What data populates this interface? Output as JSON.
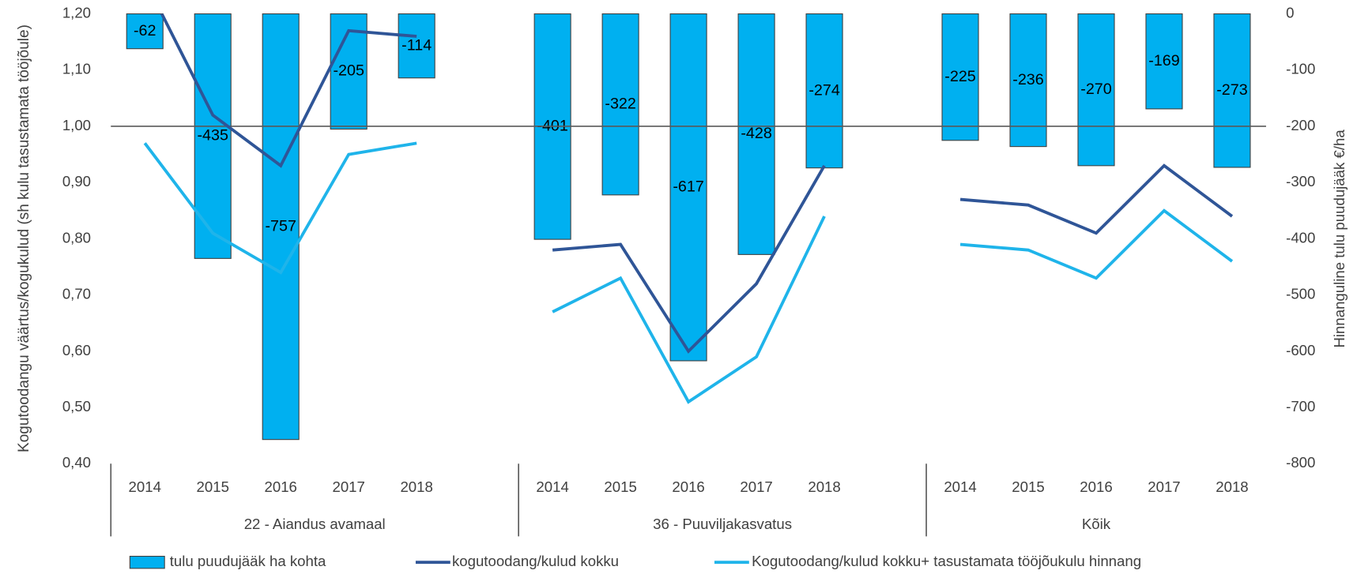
{
  "chart_data": {
    "type": "bar-line",
    "y_label": "Kogutoodangu väärtus/kogukulud (sh kulu tasustamata tööjõule)",
    "y2_label": "Hinnanguline tulu puudujääk €/ha",
    "categories": [
      "2014",
      "2015",
      "2016",
      "2017",
      "2018",
      null,
      "2014",
      "2015",
      "2016",
      "2017",
      "2018",
      null,
      "2014",
      "2015",
      "2016",
      "2017",
      "2018"
    ],
    "groups": [
      {
        "label": "22 - Aiandus avamaal",
        "start": 0,
        "end": 5
      },
      {
        "label": "36 - Puuviljakasvatus",
        "start": 6,
        "end": 11
      },
      {
        "label": "Kõik",
        "start": 12,
        "end": 16
      }
    ],
    "ylim": [
      0.4,
      1.2
    ],
    "yticks": [
      {
        "value": 0.4,
        "label": "0,40"
      },
      {
        "value": 0.5,
        "label": "0,50"
      },
      {
        "value": 0.6,
        "label": "0,60"
      },
      {
        "value": 0.7,
        "label": "0,70"
      },
      {
        "value": 0.8,
        "label": "0,80"
      },
      {
        "value": 0.9,
        "label": "0,90"
      },
      {
        "value": 1.0,
        "label": "1,00"
      },
      {
        "value": 1.1,
        "label": "1,10"
      },
      {
        "value": 1.2,
        "label": "1,20"
      }
    ],
    "y2lim": [
      -800,
      0
    ],
    "y2ticks": [
      -800,
      -700,
      -600,
      -500,
      -400,
      -300,
      -200,
      -100,
      0
    ],
    "reference_line": 1.0,
    "legend": "bottom",
    "series": [
      {
        "name": "tulu puudujääk ha kohta",
        "type": "bar",
        "axis": "y2",
        "color": "#00b0f0",
        "values": [
          -62,
          -435,
          -757,
          -205,
          -114,
          null,
          -401,
          -322,
          -617,
          -428,
          -274,
          null,
          -225,
          -236,
          -270,
          -169,
          -273
        ]
      },
      {
        "name": "kogutoodang/kulud kokku",
        "type": "line",
        "color": "#2f5597",
        "values": [
          1.26,
          1.02,
          0.93,
          1.17,
          1.16,
          null,
          0.78,
          0.79,
          0.6,
          0.72,
          0.93,
          null,
          0.87,
          0.86,
          0.81,
          0.93,
          0.84
        ]
      },
      {
        "name": "Kogutoodang/kulud kokku+ tasustamata tööjõukulu hinnang",
        "type": "line",
        "color": "#1fb4ea",
        "values": [
          0.97,
          0.81,
          0.74,
          0.95,
          0.97,
          null,
          0.67,
          0.73,
          0.51,
          0.59,
          0.84,
          null,
          0.79,
          0.78,
          0.73,
          0.85,
          0.76
        ]
      }
    ]
  }
}
